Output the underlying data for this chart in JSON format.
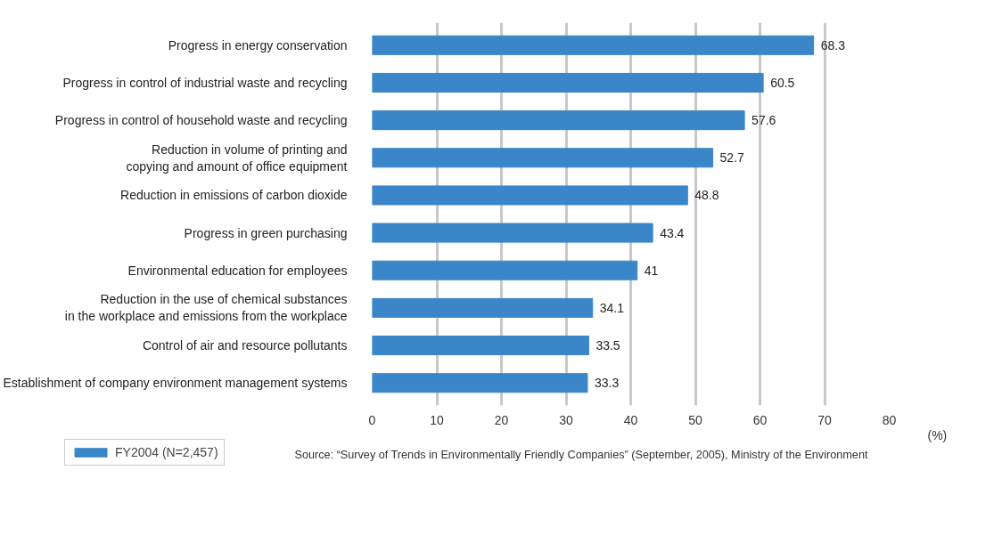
{
  "chart_data": {
    "type": "bar",
    "orientation": "horizontal",
    "categories": [
      "Progress in energy conservation",
      "Progress in control of industrial waste and recycling",
      "Progress in control of household waste and recycling",
      "Reduction in volume of printing and\ncopying and amount of office equipment",
      "Reduction in emissions of carbon dioxide",
      "Progress in green purchasing",
      "Environmental education for employees",
      "Reduction in the use of chemical substances\nin the workplace and emissions from the workplace",
      "Control of air and resource pollutants",
      "Establishment of company environment management systems"
    ],
    "series": [
      {
        "name": "FY2004 (N=2,457)",
        "color": "#3a86c8",
        "values": [
          68.3,
          60.5,
          57.6,
          52.7,
          48.8,
          43.4,
          41,
          34.1,
          33.5,
          33.3
        ]
      }
    ],
    "xlim": [
      0,
      80
    ],
    "xticks": [
      0,
      10,
      20,
      30,
      40,
      50,
      60,
      70,
      80
    ],
    "xlabel": "(%)",
    "grid": "x",
    "legend": "bottom left",
    "data_labels": true,
    "annotations": [
      "Source: “Survey of Trends in Environmentally Friendly Companies” (September, 2005), Ministry of the Environment"
    ]
  }
}
